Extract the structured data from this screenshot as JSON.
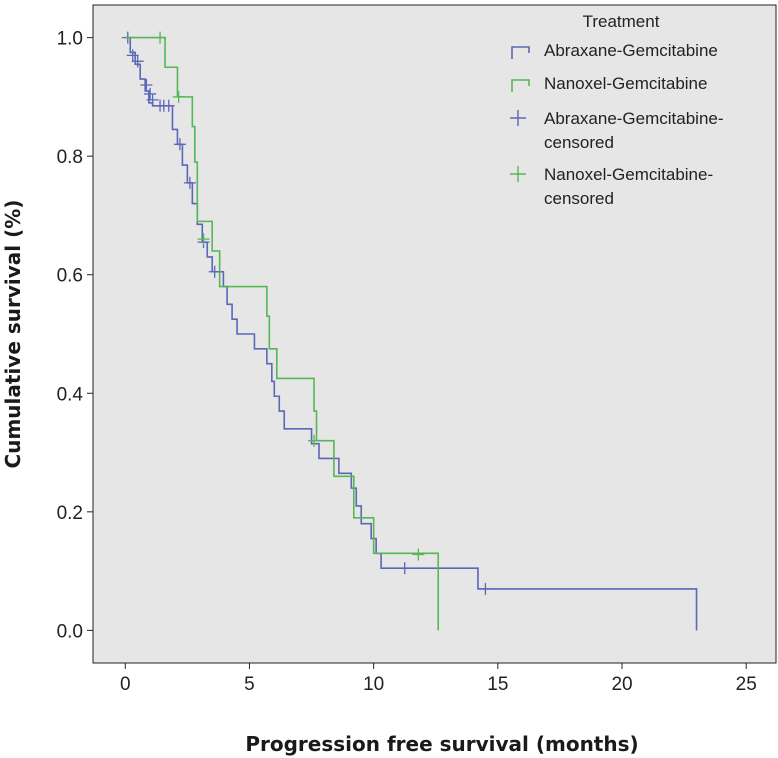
{
  "chart_data": {
    "type": "line",
    "subtype": "kaplan-meier-step",
    "xlabel": "Progression free survival (months)",
    "ylabel": "Cumulative survival (%)",
    "xlim": [
      -1.3,
      26.2
    ],
    "ylim": [
      -0.055,
      1.055
    ],
    "xticks": [
      0,
      5,
      10,
      15,
      20,
      25
    ],
    "yticks": [
      0.0,
      0.2,
      0.4,
      0.6,
      0.8,
      1.0
    ],
    "grid": false,
    "background": "#e6e6e6",
    "legend": {
      "title": "Treatment",
      "position": "top-right",
      "entries": [
        {
          "label": "Abraxane-Gemcitabine",
          "marker": "step",
          "color": "#5b67b8"
        },
        {
          "label": "Nanoxel-Gemcitabine",
          "marker": "step",
          "color": "#55b755"
        },
        {
          "label_lines": [
            "Abraxane-Gemcitabine-",
            "censored"
          ],
          "marker": "plus",
          "color": "#5b67b8"
        },
        {
          "label_lines": [
            "Nanoxel-Gemcitabine-",
            "censored"
          ],
          "marker": "plus",
          "color": "#55b755"
        }
      ]
    },
    "series": [
      {
        "name": "Abraxane-Gemcitabine",
        "color": "#5b67b8",
        "steps": [
          [
            0.0,
            1.0
          ],
          [
            0.2,
            0.975
          ],
          [
            0.4,
            0.955
          ],
          [
            0.6,
            0.93
          ],
          [
            0.8,
            0.91
          ],
          [
            0.95,
            0.89
          ],
          [
            1.1,
            0.885
          ],
          [
            1.9,
            0.845
          ],
          [
            2.1,
            0.82
          ],
          [
            2.3,
            0.785
          ],
          [
            2.5,
            0.755
          ],
          [
            2.7,
            0.72
          ],
          [
            2.9,
            0.685
          ],
          [
            3.1,
            0.655
          ],
          [
            3.3,
            0.63
          ],
          [
            3.5,
            0.605
          ],
          [
            3.95,
            0.58
          ],
          [
            4.1,
            0.55
          ],
          [
            4.3,
            0.525
          ],
          [
            4.5,
            0.5
          ],
          [
            5.2,
            0.475
          ],
          [
            5.7,
            0.45
          ],
          [
            5.9,
            0.42
          ],
          [
            6.0,
            0.395
          ],
          [
            6.2,
            0.37
          ],
          [
            6.4,
            0.34
          ],
          [
            7.5,
            0.315
          ],
          [
            7.8,
            0.29
          ],
          [
            8.6,
            0.265
          ],
          [
            9.1,
            0.24
          ],
          [
            9.3,
            0.21
          ],
          [
            9.5,
            0.18
          ],
          [
            9.9,
            0.155
          ],
          [
            10.1,
            0.13
          ],
          [
            10.3,
            0.105
          ],
          [
            14.2,
            0.07
          ],
          [
            23.0,
            0.0
          ]
        ],
        "end_x": 23.0,
        "censored": [
          [
            0.1,
            1.0
          ],
          [
            0.3,
            0.97
          ],
          [
            0.5,
            0.96
          ],
          [
            0.85,
            0.92
          ],
          [
            1.0,
            0.905
          ],
          [
            1.1,
            0.895
          ],
          [
            1.4,
            0.885
          ],
          [
            1.55,
            0.885
          ],
          [
            1.75,
            0.885
          ],
          [
            2.2,
            0.82
          ],
          [
            2.6,
            0.755
          ],
          [
            3.15,
            0.655
          ],
          [
            3.6,
            0.605
          ],
          [
            11.25,
            0.105
          ],
          [
            14.5,
            0.07
          ]
        ]
      },
      {
        "name": "Nanoxel-Gemcitabine",
        "color": "#55b755",
        "steps": [
          [
            0.0,
            1.0
          ],
          [
            1.6,
            0.95
          ],
          [
            2.1,
            0.9
          ],
          [
            2.7,
            0.85
          ],
          [
            2.8,
            0.79
          ],
          [
            2.9,
            0.69
          ],
          [
            3.5,
            0.64
          ],
          [
            3.8,
            0.58
          ],
          [
            5.7,
            0.53
          ],
          [
            5.8,
            0.475
          ],
          [
            6.1,
            0.425
          ],
          [
            7.6,
            0.37
          ],
          [
            7.7,
            0.32
          ],
          [
            8.4,
            0.26
          ],
          [
            9.2,
            0.19
          ],
          [
            10.0,
            0.13
          ],
          [
            12.6,
            0.0
          ]
        ],
        "end_x": 12.6,
        "censored": [
          [
            1.4,
            1.0
          ],
          [
            2.15,
            0.9
          ],
          [
            3.15,
            0.66
          ],
          [
            7.6,
            0.32
          ],
          [
            11.8,
            0.128
          ]
        ]
      }
    ]
  }
}
